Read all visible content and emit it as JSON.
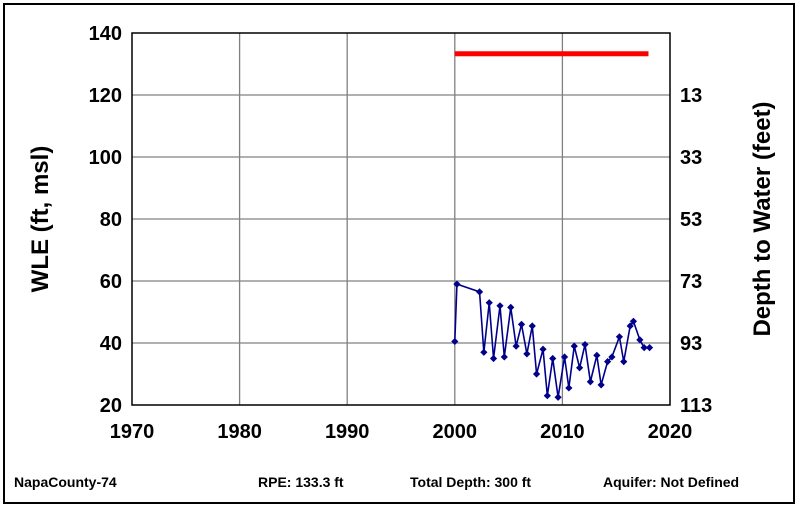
{
  "chart_data": {
    "type": "line",
    "xlim": [
      1970,
      2020
    ],
    "ylim": [
      20,
      140
    ],
    "x_ticks": [
      "1970",
      "1980",
      "1990",
      "2000",
      "2010",
      "2020"
    ],
    "y_ticks": [
      "20",
      "40",
      "60",
      "80",
      "100",
      "120",
      "140"
    ],
    "y2_ticks": [
      "13",
      "33",
      "53",
      "73",
      "93",
      "113"
    ],
    "ylabel": "WLE (ft, msl)",
    "y2label": "Depth to Water (feet)",
    "grid": true,
    "series": [
      {
        "color": "#00008B",
        "marker": "diamond",
        "x": [
          2000.0,
          2000.2,
          2002.3,
          2002.7,
          2003.2,
          2003.6,
          2004.2,
          2004.6,
          2005.2,
          2005.7,
          2006.2,
          2006.7,
          2007.2,
          2007.6,
          2008.2,
          2008.6,
          2009.1,
          2009.6,
          2010.2,
          2010.6,
          2011.1,
          2011.6,
          2012.1,
          2012.6,
          2013.2,
          2013.6,
          2014.2,
          2014.6,
          2015.3,
          2015.7,
          2016.3,
          2016.6,
          2017.2,
          2017.6,
          2018.1
        ],
        "y": [
          40.5,
          59,
          56.5,
          37,
          53,
          35,
          52,
          35.5,
          51.5,
          39,
          46,
          36.5,
          45.5,
          30,
          38,
          23,
          35,
          22.5,
          35.5,
          25.5,
          39,
          32,
          39.5,
          27.5,
          36,
          26.5,
          34,
          35.5,
          42,
          34,
          45.5,
          47,
          41,
          38.5,
          38.5
        ]
      }
    ],
    "reference_lines": [
      {
        "color": "#FF0000",
        "y": 133.3,
        "x_start": 2000,
        "x_end": 2018
      }
    ]
  },
  "footer": {
    "well_id": "NapaCounty-74",
    "rpe": "RPE: 133.3 ft",
    "total_depth": "Total Depth: 300 ft",
    "aquifer": "Aquifer: Not Defined"
  }
}
